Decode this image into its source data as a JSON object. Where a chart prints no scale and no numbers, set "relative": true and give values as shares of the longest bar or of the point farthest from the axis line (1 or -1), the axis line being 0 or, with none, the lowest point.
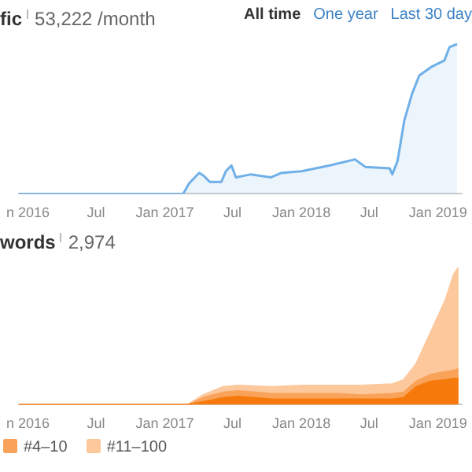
{
  "chart_data": [
    {
      "type": "area",
      "title": "fic",
      "subtitle": "53,222 /month",
      "annotations": [
        "All time",
        "One year",
        "Last 30 day"
      ],
      "relative": true,
      "color": "#6fb0e8",
      "xlim": [
        "2015-12-08",
        "2019-03-05"
      ],
      "xticks": [
        {
          "value": "2016-01-01",
          "label": "n 2016"
        },
        {
          "value": "2016-07-01",
          "label": "Jul"
        },
        {
          "value": "2017-01-01",
          "label": "Jan 2017"
        },
        {
          "value": "2017-07-01",
          "label": "Jul"
        },
        {
          "value": "2018-01-01",
          "label": "Jan 2018"
        },
        {
          "value": "2018-07-01",
          "label": "Jul"
        },
        {
          "value": "2019-01-01",
          "label": "Jan 2019"
        }
      ],
      "x": [
        "2015-12-08",
        "2017-02-19",
        "2017-03-07",
        "2017-04-03",
        "2017-04-15",
        "2017-05-01",
        "2017-06-01",
        "2017-06-13",
        "2017-06-28",
        "2017-07-10",
        "2017-08-19",
        "2017-10-12",
        "2017-11-09",
        "2018-01-01",
        "2018-03-18",
        "2018-05-24",
        "2018-06-21",
        "2018-08-25",
        "2018-09-01",
        "2018-09-15",
        "2018-10-03",
        "2018-10-24",
        "2018-11-12",
        "2018-12-16",
        "2019-01-18",
        "2019-02-01",
        "2019-02-21"
      ],
      "values": [
        0,
        0,
        0.07,
        0.14,
        0.12,
        0.08,
        0.08,
        0.15,
        0.19,
        0.11,
        0.13,
        0.11,
        0.14,
        0.15,
        0.19,
        0.23,
        0.18,
        0.17,
        0.13,
        0.22,
        0.49,
        0.67,
        0.79,
        0.85,
        0.89,
        0.98,
        1
      ]
    },
    {
      "type": "area",
      "title": "words",
      "subtitle": "2,974",
      "relative": true,
      "stacked": true,
      "legend": "bottom left",
      "xlim": [
        "2015-12-08",
        "2019-03-05"
      ],
      "xticks": [
        {
          "value": "2016-01-01",
          "label": "n 2016"
        },
        {
          "value": "2016-07-01",
          "label": "Jul"
        },
        {
          "value": "2017-01-01",
          "label": "Jan 2017"
        },
        {
          "value": "2017-07-01",
          "label": "Jul"
        },
        {
          "value": "2018-01-01",
          "label": "Jan 2018"
        },
        {
          "value": "2018-07-01",
          "label": "Jul"
        },
        {
          "value": "2019-01-01",
          "label": "Jan 2019"
        }
      ],
      "x": [
        "2015-12-08",
        "2017-03-04",
        "2017-04-13",
        "2017-06-06",
        "2017-07-15",
        "2017-10-15",
        "2018-01-04",
        "2018-04-06",
        "2018-06-10",
        "2018-09-01",
        "2018-10-01",
        "2018-11-04",
        "2018-12-13",
        "2019-01-22",
        "2019-02-12",
        "2019-02-25"
      ],
      "series": [
        {
          "color": "#f67a0b",
          "values": [
            0,
            0,
            0.02,
            0.05,
            0.06,
            0.04,
            0.04,
            0.04,
            0.04,
            0.04,
            0.05,
            0.13,
            0.17,
            0.18,
            0.19,
            0.19
          ]
        },
        {
          "name": "#4–10",
          "color": "#f9a35a",
          "values": [
            0,
            0,
            0.03,
            0.04,
            0.04,
            0.04,
            0.04,
            0.04,
            0.03,
            0.04,
            0.04,
            0.04,
            0.05,
            0.06,
            0.06,
            0.07
          ]
        },
        {
          "name": "#11–100",
          "color": "#fcc89c",
          "values": [
            0,
            0,
            0.02,
            0.04,
            0.04,
            0.05,
            0.06,
            0.06,
            0.07,
            0.07,
            0.09,
            0.13,
            0.31,
            0.53,
            0.7,
            0.74
          ]
        }
      ]
    }
  ]
}
